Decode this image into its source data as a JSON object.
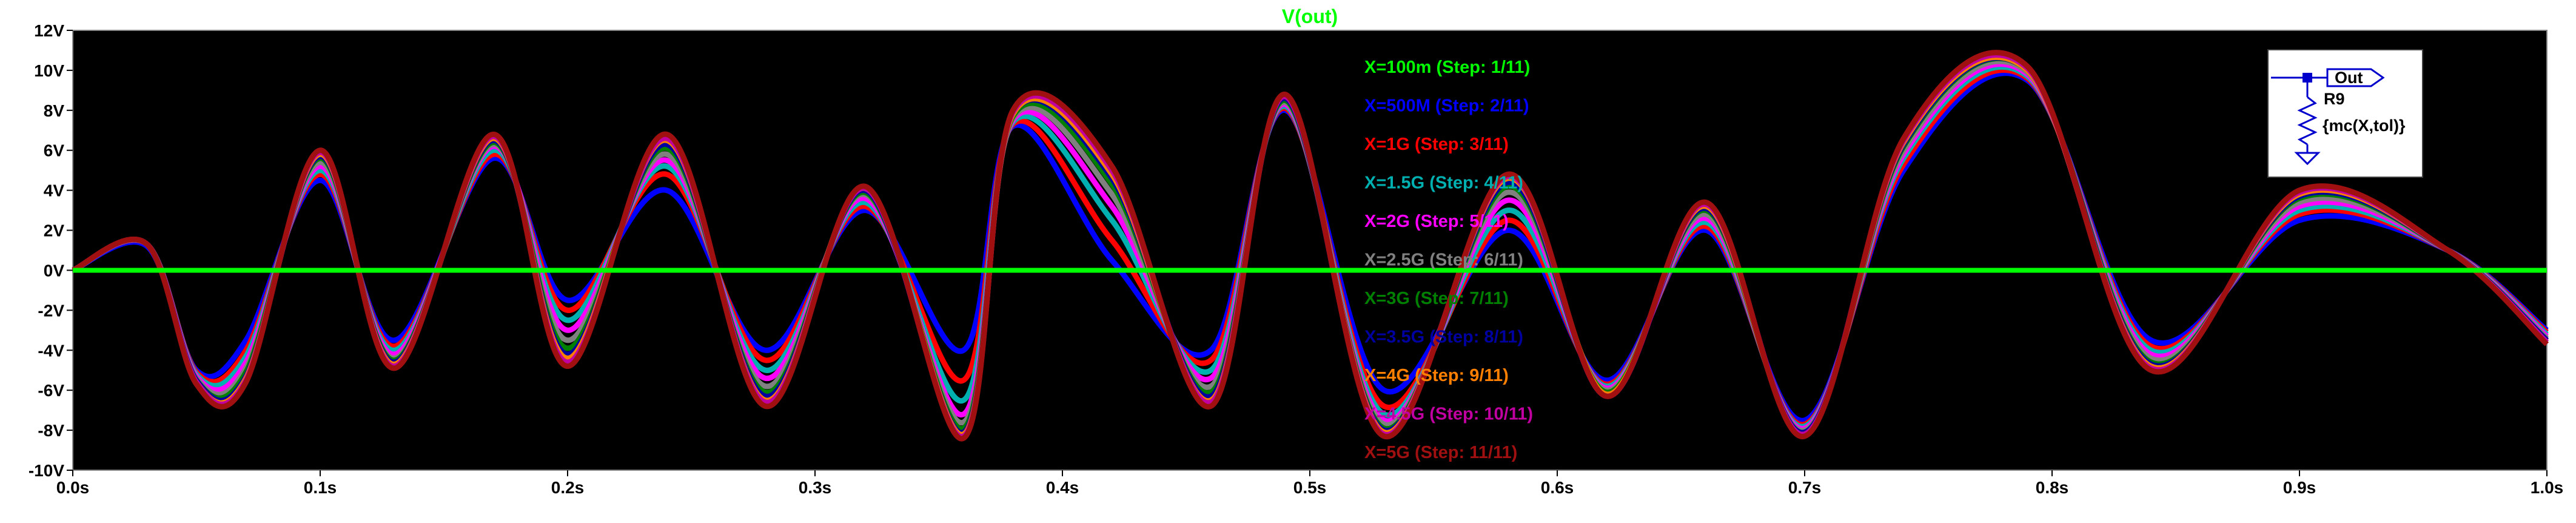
{
  "chart_data": {
    "type": "line",
    "title": "V(out)",
    "title_color": "#00ff00",
    "background": "#000000",
    "xlim": [
      0,
      1.0
    ],
    "ylim": [
      -10,
      12
    ],
    "x_ticks": [
      "0.0s",
      "0.1s",
      "0.2s",
      "0.3s",
      "0.4s",
      "0.5s",
      "0.6s",
      "0.7s",
      "0.8s",
      "0.9s",
      "1.0s"
    ],
    "y_ticks": [
      "12V",
      "10V",
      "8V",
      "6V",
      "4V",
      "2V",
      "0V",
      "-2V",
      "-4V",
      "-6V",
      "-8V",
      "-10V"
    ],
    "legend_placement": "top-center (stacked list over plot)",
    "series": [
      {
        "name": "X=100m  (Step: 1/11)",
        "color": "#00ff00",
        "values": [
          [
            0,
            0
          ],
          [
            1.0,
            0
          ]
        ]
      },
      {
        "name": "X=500M  (Step: 2/11)",
        "color": "#0000ff",
        "values": [
          [
            0,
            0
          ],
          [
            0.03,
            1.2
          ],
          [
            0.05,
            -5.0
          ],
          [
            0.07,
            -3.5
          ],
          [
            0.1,
            4.5
          ],
          [
            0.13,
            -3.5
          ],
          [
            0.17,
            5.6
          ],
          [
            0.2,
            -1.5
          ],
          [
            0.24,
            4.0
          ],
          [
            0.28,
            -4.0
          ],
          [
            0.32,
            3.0
          ],
          [
            0.36,
            -4.0
          ],
          [
            0.38,
            7.2
          ],
          [
            0.42,
            0.5
          ],
          [
            0.46,
            -4.0
          ],
          [
            0.49,
            8.0
          ],
          [
            0.53,
            -6.0
          ],
          [
            0.58,
            2.0
          ],
          [
            0.62,
            -5.5
          ],
          [
            0.66,
            2.0
          ],
          [
            0.7,
            -7.5
          ],
          [
            0.74,
            5.0
          ],
          [
            0.79,
            9.5
          ],
          [
            0.84,
            -3.5
          ],
          [
            0.9,
            2.5
          ],
          [
            0.96,
            1.0
          ],
          [
            1.0,
            -3.0
          ]
        ]
      },
      {
        "name": "X=1G  (Step: 3/11)",
        "color": "#ff0000",
        "values": [
          [
            0,
            0
          ],
          [
            0.03,
            1.3
          ],
          [
            0.05,
            -5.1
          ],
          [
            0.07,
            -4.0
          ],
          [
            0.1,
            4.8
          ],
          [
            0.13,
            -3.8
          ],
          [
            0.17,
            5.8
          ],
          [
            0.2,
            -2.0
          ],
          [
            0.24,
            4.8
          ],
          [
            0.28,
            -4.5
          ],
          [
            0.32,
            3.2
          ],
          [
            0.36,
            -5.5
          ],
          [
            0.38,
            7.3
          ],
          [
            0.42,
            1.5
          ],
          [
            0.46,
            -4.5
          ],
          [
            0.49,
            8.1
          ],
          [
            0.53,
            -6.8
          ],
          [
            0.58,
            2.5
          ],
          [
            0.62,
            -5.7
          ],
          [
            0.66,
            2.2
          ],
          [
            0.7,
            -7.7
          ],
          [
            0.74,
            5.3
          ],
          [
            0.79,
            9.6
          ],
          [
            0.84,
            -3.8
          ],
          [
            0.9,
            2.8
          ],
          [
            0.96,
            1.0
          ],
          [
            1.0,
            -3.1
          ]
        ]
      },
      {
        "name": "X=1.5G  (Step: 4/11)",
        "color": "#00b0b0",
        "values": [
          [
            0,
            0
          ],
          [
            0.03,
            1.3
          ],
          [
            0.05,
            -5.2
          ],
          [
            0.07,
            -4.3
          ],
          [
            0.1,
            5.0
          ],
          [
            0.13,
            -4.0
          ],
          [
            0.17,
            6.0
          ],
          [
            0.2,
            -2.5
          ],
          [
            0.24,
            5.2
          ],
          [
            0.28,
            -5.0
          ],
          [
            0.32,
            3.4
          ],
          [
            0.36,
            -6.5
          ],
          [
            0.38,
            7.4
          ],
          [
            0.42,
            2.5
          ],
          [
            0.46,
            -5.0
          ],
          [
            0.49,
            8.2
          ],
          [
            0.53,
            -7.2
          ],
          [
            0.58,
            3.0
          ],
          [
            0.62,
            -5.8
          ],
          [
            0.66,
            2.4
          ],
          [
            0.7,
            -7.8
          ],
          [
            0.74,
            5.6
          ],
          [
            0.79,
            9.7
          ],
          [
            0.84,
            -4.0
          ],
          [
            0.9,
            3.0
          ],
          [
            0.96,
            1.0
          ],
          [
            1.0,
            -3.2
          ]
        ]
      },
      {
        "name": "X=2G  (Step: 5/11)",
        "color": "#ff00ff",
        "values": [
          [
            0,
            0
          ],
          [
            0.03,
            1.3
          ],
          [
            0.05,
            -5.3
          ],
          [
            0.07,
            -4.6
          ],
          [
            0.1,
            5.2
          ],
          [
            0.13,
            -4.2
          ],
          [
            0.17,
            6.2
          ],
          [
            0.2,
            -3.0
          ],
          [
            0.24,
            5.5
          ],
          [
            0.28,
            -5.4
          ],
          [
            0.32,
            3.6
          ],
          [
            0.36,
            -7.2
          ],
          [
            0.38,
            7.5
          ],
          [
            0.42,
            3.2
          ],
          [
            0.46,
            -5.4
          ],
          [
            0.49,
            8.3
          ],
          [
            0.53,
            -7.5
          ],
          [
            0.58,
            3.5
          ],
          [
            0.62,
            -5.9
          ],
          [
            0.66,
            2.6
          ],
          [
            0.7,
            -7.9
          ],
          [
            0.74,
            5.8
          ],
          [
            0.79,
            9.8
          ],
          [
            0.84,
            -4.2
          ],
          [
            0.9,
            3.2
          ],
          [
            0.96,
            1.0
          ],
          [
            1.0,
            -3.3
          ]
        ]
      },
      {
        "name": "X=2.5G  (Step: 6/11)",
        "color": "#808080",
        "values": [
          [
            0,
            0
          ],
          [
            0.03,
            1.3
          ],
          [
            0.05,
            -5.4
          ],
          [
            0.07,
            -4.9
          ],
          [
            0.1,
            5.4
          ],
          [
            0.13,
            -4.4
          ],
          [
            0.17,
            6.3
          ],
          [
            0.2,
            -3.5
          ],
          [
            0.24,
            5.8
          ],
          [
            0.28,
            -5.8
          ],
          [
            0.32,
            3.8
          ],
          [
            0.36,
            -7.6
          ],
          [
            0.38,
            7.6
          ],
          [
            0.42,
            3.8
          ],
          [
            0.46,
            -5.8
          ],
          [
            0.49,
            8.4
          ],
          [
            0.53,
            -7.7
          ],
          [
            0.58,
            3.9
          ],
          [
            0.62,
            -6.0
          ],
          [
            0.66,
            2.8
          ],
          [
            0.7,
            -8.0
          ],
          [
            0.74,
            6.0
          ],
          [
            0.79,
            9.9
          ],
          [
            0.84,
            -4.4
          ],
          [
            0.9,
            3.4
          ],
          [
            0.96,
            1.0
          ],
          [
            1.0,
            -3.4
          ]
        ]
      },
      {
        "name": "X=3G  (Step: 7/11)",
        "color": "#008000",
        "values": [
          [
            0,
            0
          ],
          [
            0.03,
            1.3
          ],
          [
            0.05,
            -5.5
          ],
          [
            0.07,
            -5.1
          ],
          [
            0.1,
            5.6
          ],
          [
            0.13,
            -4.5
          ],
          [
            0.17,
            6.4
          ],
          [
            0.2,
            -3.9
          ],
          [
            0.24,
            6.1
          ],
          [
            0.28,
            -6.1
          ],
          [
            0.32,
            3.9
          ],
          [
            0.36,
            -7.9
          ],
          [
            0.38,
            7.7
          ],
          [
            0.42,
            4.3
          ],
          [
            0.46,
            -6.1
          ],
          [
            0.49,
            8.5
          ],
          [
            0.53,
            -7.9
          ],
          [
            0.58,
            4.2
          ],
          [
            0.62,
            -6.1
          ],
          [
            0.66,
            3.0
          ],
          [
            0.7,
            -8.1
          ],
          [
            0.74,
            6.2
          ],
          [
            0.79,
            10.0
          ],
          [
            0.84,
            -4.6
          ],
          [
            0.9,
            3.6
          ],
          [
            0.96,
            1.0
          ],
          [
            1.0,
            -3.5
          ]
        ]
      },
      {
        "name": "X=3.5G  (Step: 8/11)",
        "color": "#0000a0",
        "values": [
          [
            0,
            0
          ],
          [
            0.03,
            1.3
          ],
          [
            0.05,
            -5.5
          ],
          [
            0.07,
            -5.3
          ],
          [
            0.1,
            5.7
          ],
          [
            0.13,
            -4.6
          ],
          [
            0.17,
            6.5
          ],
          [
            0.2,
            -4.2
          ],
          [
            0.24,
            6.3
          ],
          [
            0.28,
            -6.3
          ],
          [
            0.32,
            4.0
          ],
          [
            0.36,
            -8.1
          ],
          [
            0.38,
            7.8
          ],
          [
            0.42,
            4.6
          ],
          [
            0.46,
            -6.3
          ],
          [
            0.49,
            8.6
          ],
          [
            0.53,
            -8.0
          ],
          [
            0.58,
            4.4
          ],
          [
            0.62,
            -6.2
          ],
          [
            0.66,
            3.1
          ],
          [
            0.7,
            -8.1
          ],
          [
            0.74,
            6.3
          ],
          [
            0.79,
            10.0
          ],
          [
            0.84,
            -4.7
          ],
          [
            0.9,
            3.7
          ],
          [
            0.96,
            1.0
          ],
          [
            1.0,
            -3.5
          ]
        ]
      },
      {
        "name": "X=4G  (Step: 9/11)",
        "color": "#ff8000",
        "values": [
          [
            0,
            0
          ],
          [
            0.03,
            1.3
          ],
          [
            0.05,
            -5.6
          ],
          [
            0.07,
            -5.4
          ],
          [
            0.1,
            5.8
          ],
          [
            0.13,
            -4.7
          ],
          [
            0.17,
            6.6
          ],
          [
            0.2,
            -4.4
          ],
          [
            0.24,
            6.5
          ],
          [
            0.28,
            -6.5
          ],
          [
            0.32,
            4.1
          ],
          [
            0.36,
            -8.2
          ],
          [
            0.38,
            7.8
          ],
          [
            0.42,
            4.8
          ],
          [
            0.46,
            -6.5
          ],
          [
            0.49,
            8.7
          ],
          [
            0.53,
            -8.1
          ],
          [
            0.58,
            4.6
          ],
          [
            0.62,
            -6.2
          ],
          [
            0.66,
            3.2
          ],
          [
            0.7,
            -8.2
          ],
          [
            0.74,
            6.4
          ],
          [
            0.79,
            10.0
          ],
          [
            0.84,
            -4.8
          ],
          [
            0.9,
            3.8
          ],
          [
            0.96,
            1.0
          ],
          [
            1.0,
            -3.6
          ]
        ]
      },
      {
        "name": "X=4.5G  (Step: 10/11)",
        "color": "#c000a0",
        "values": [
          [
            0,
            0
          ],
          [
            0.03,
            1.3
          ],
          [
            0.05,
            -5.6
          ],
          [
            0.07,
            -5.5
          ],
          [
            0.1,
            5.9
          ],
          [
            0.13,
            -4.8
          ],
          [
            0.17,
            6.7
          ],
          [
            0.2,
            -4.6
          ],
          [
            0.24,
            6.6
          ],
          [
            0.28,
            -6.6
          ],
          [
            0.32,
            4.1
          ],
          [
            0.36,
            -8.3
          ],
          [
            0.38,
            7.9
          ],
          [
            0.42,
            5.0
          ],
          [
            0.46,
            -6.6
          ],
          [
            0.49,
            8.7
          ],
          [
            0.53,
            -8.2
          ],
          [
            0.58,
            4.7
          ],
          [
            0.62,
            -6.3
          ],
          [
            0.66,
            3.3
          ],
          [
            0.7,
            -8.2
          ],
          [
            0.74,
            6.5
          ],
          [
            0.79,
            10.1
          ],
          [
            0.84,
            -4.9
          ],
          [
            0.9,
            3.9
          ],
          [
            0.96,
            1.0
          ],
          [
            1.0,
            -3.6
          ]
        ]
      },
      {
        "name": "X=5G  (Step: 11/11)",
        "color": "#a01010",
        "values": [
          [
            0,
            0
          ],
          [
            0.03,
            1.3
          ],
          [
            0.05,
            -5.7
          ],
          [
            0.07,
            -5.6
          ],
          [
            0.1,
            6.0
          ],
          [
            0.13,
            -4.9
          ],
          [
            0.17,
            6.8
          ],
          [
            0.2,
            -4.8
          ],
          [
            0.24,
            6.8
          ],
          [
            0.28,
            -6.8
          ],
          [
            0.32,
            4.2
          ],
          [
            0.36,
            -8.4
          ],
          [
            0.38,
            8.0
          ],
          [
            0.42,
            5.2
          ],
          [
            0.46,
            -6.8
          ],
          [
            0.49,
            8.8
          ],
          [
            0.53,
            -8.3
          ],
          [
            0.58,
            4.8
          ],
          [
            0.62,
            -6.3
          ],
          [
            0.66,
            3.4
          ],
          [
            0.7,
            -8.3
          ],
          [
            0.74,
            6.6
          ],
          [
            0.79,
            10.2
          ],
          [
            0.84,
            -5.0
          ],
          [
            0.9,
            4.0
          ],
          [
            0.96,
            1.0
          ],
          [
            1.0,
            -3.7
          ]
        ]
      }
    ]
  },
  "schematic_inset": {
    "net_label": "Out",
    "component": "R9",
    "value": "{mc(X,tol)}"
  }
}
